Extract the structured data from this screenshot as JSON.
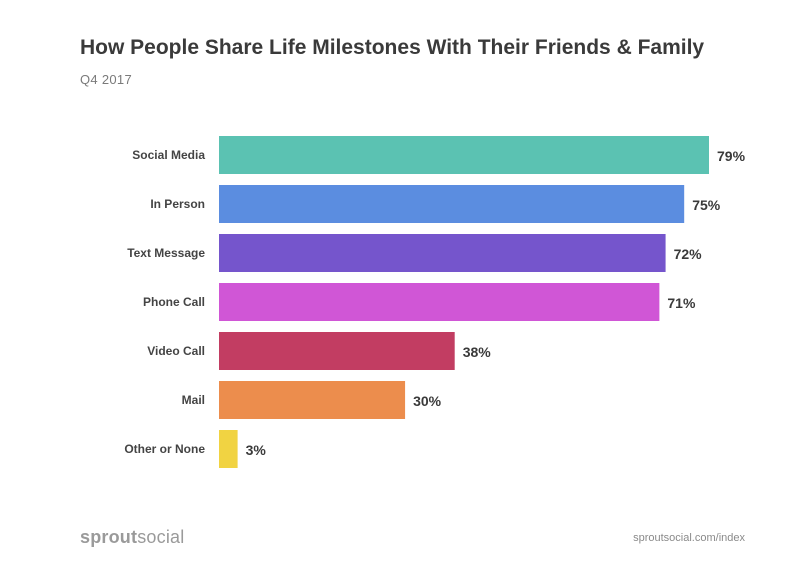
{
  "title": "How People Share Life Milestones With Their Friends & Family",
  "subtitle": "Q4 2017",
  "brand": {
    "part1": "sprout",
    "part2": "social"
  },
  "source": "sproutsocial.com/index",
  "chart_data": {
    "type": "bar",
    "orientation": "horizontal",
    "title": "How People Share Life Milestones With Their Friends & Family",
    "subtitle": "Q4 2017",
    "xlabel": "",
    "ylabel": "",
    "xlim": [
      0,
      79
    ],
    "grid": false,
    "categories": [
      "Social Media",
      "In Person",
      "Text Message",
      "Phone Call",
      "Video Call",
      "Mail",
      "Other or None"
    ],
    "values": [
      79,
      75,
      72,
      71,
      38,
      30,
      3
    ],
    "value_labels": [
      "79%",
      "75%",
      "72%",
      "71%",
      "38%",
      "30%",
      "3%"
    ],
    "colors": [
      "#5bc2b2",
      "#5b8de0",
      "#7555cc",
      "#d056d6",
      "#c23d62",
      "#ec8d4d",
      "#f1d342"
    ]
  }
}
